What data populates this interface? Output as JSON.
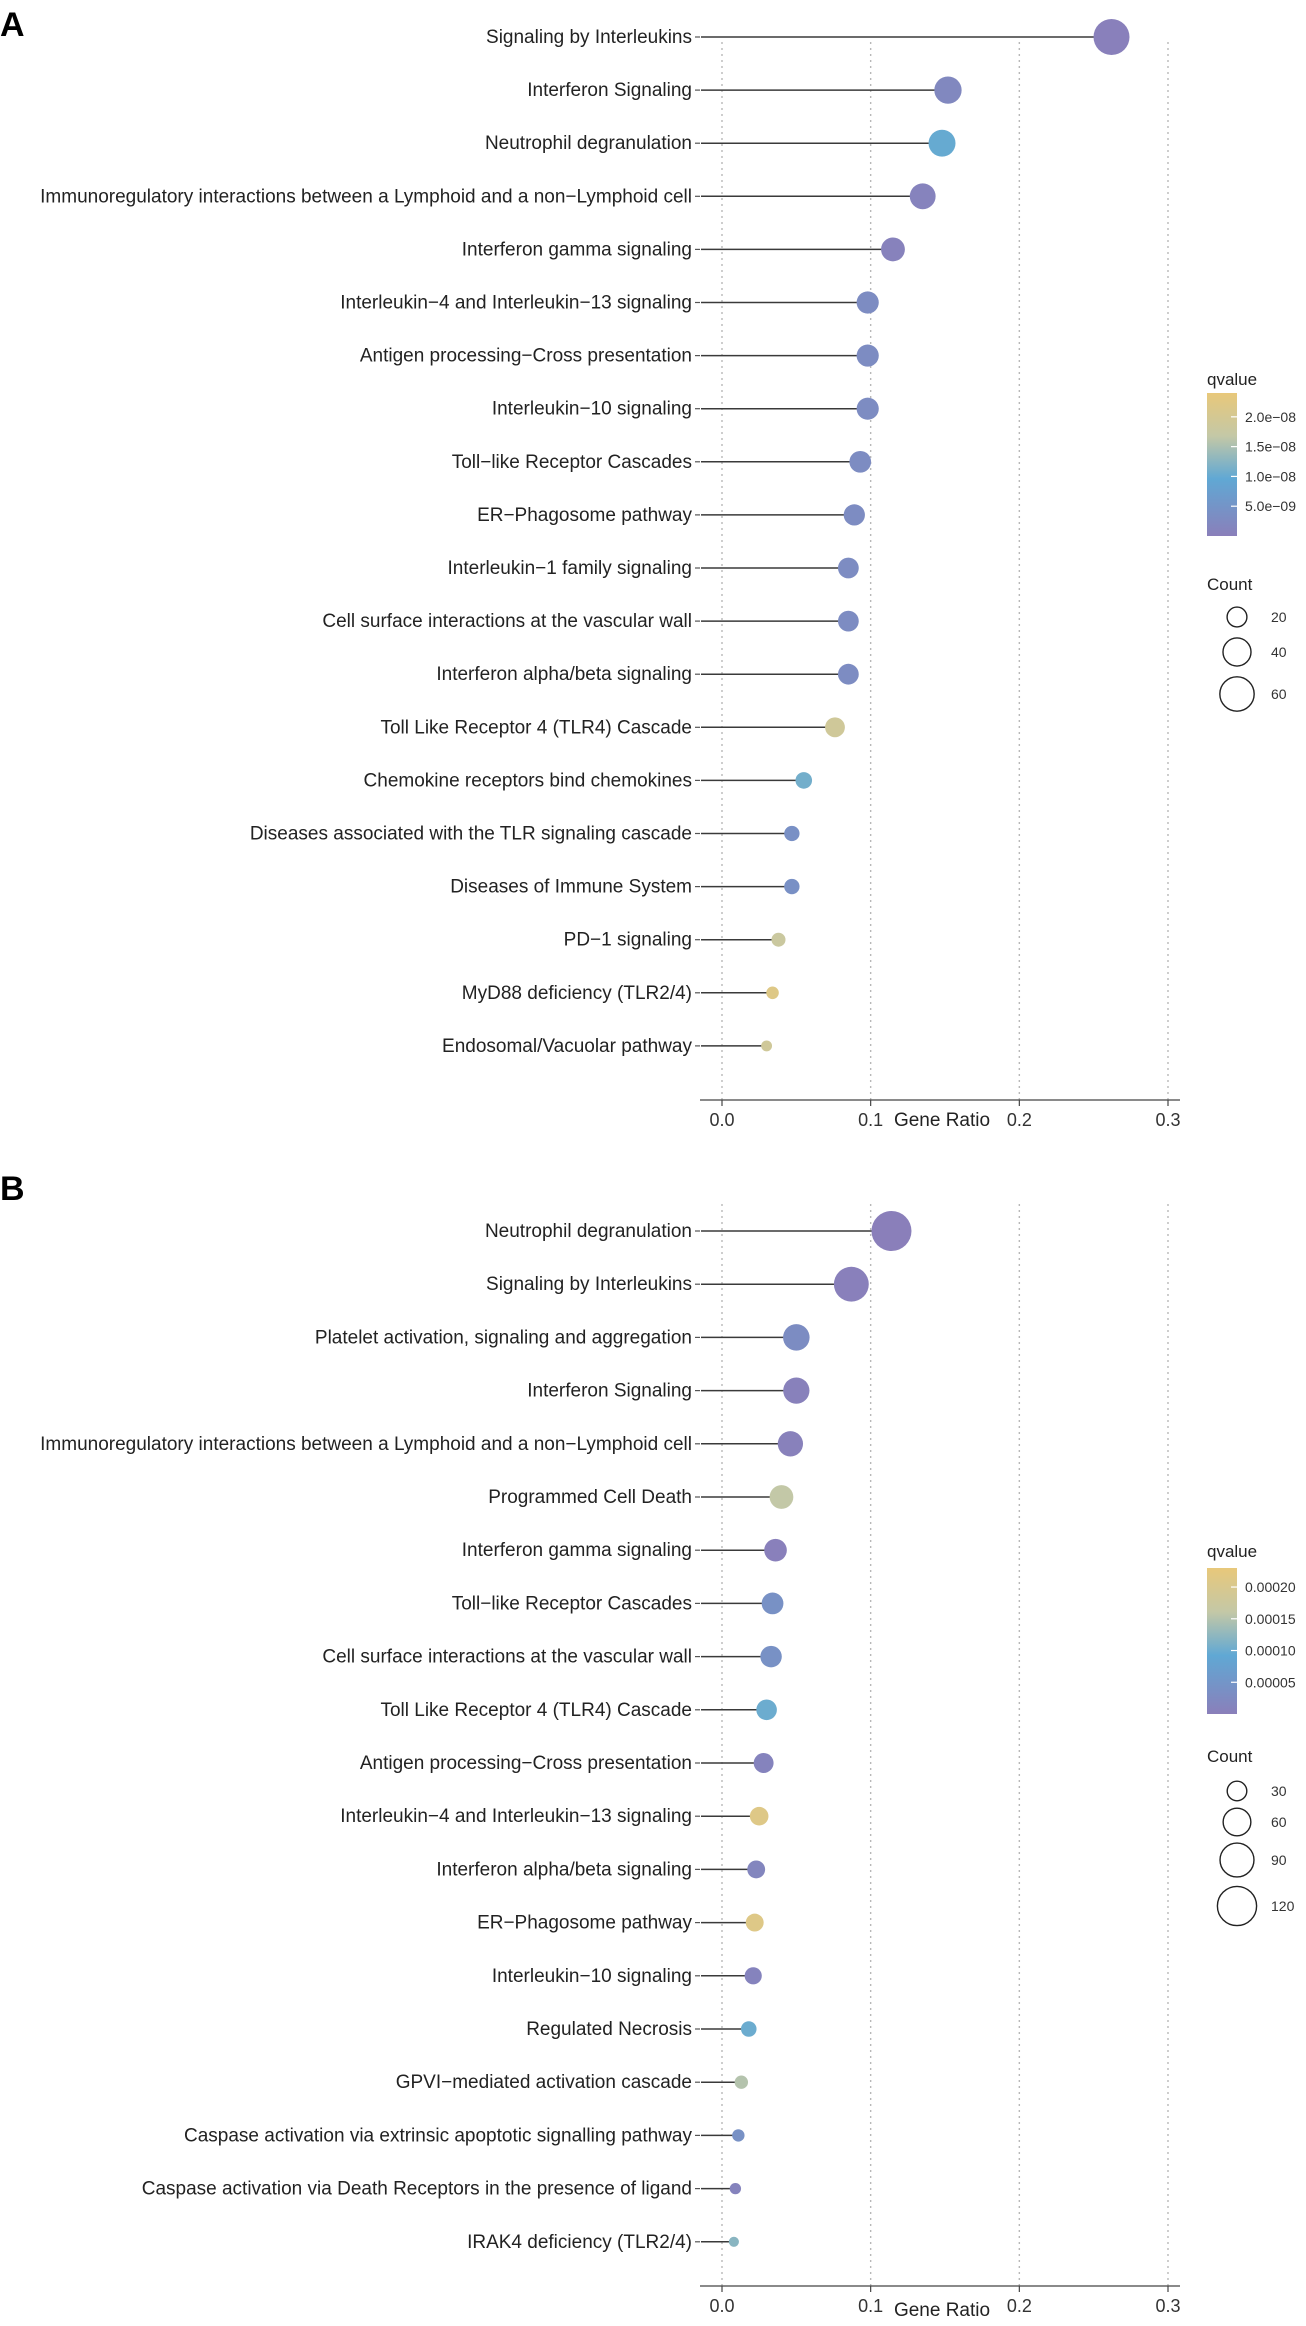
{
  "chart_data": [
    {
      "panel": "A",
      "type": "scatter",
      "style": "lollipop",
      "xlabel": "Gene Ratio",
      "xlim": [
        -0.015,
        0.315
      ],
      "xticks": [
        0.0,
        0.1,
        0.2,
        0.3
      ],
      "xtick_labels": [
        "0.0",
        "0.1",
        "0.2",
        "0.3"
      ],
      "grid": "vertical dotted at x ticks",
      "categories": [
        "Signaling by Interleukins",
        "Interferon Signaling",
        "Neutrophil degranulation",
        "Immunoregulatory interactions between a Lymphoid and a non−Lymphoid cell",
        "Interferon gamma signaling",
        "Interleukin−4 and Interleukin−13 signaling",
        "Antigen processing−Cross presentation",
        "Interleukin−10 signaling",
        "Toll−like Receptor Cascades",
        "ER−Phagosome pathway",
        "Interleukin−1 family signaling",
        "Cell surface interactions at the vascular wall",
        "Interferon alpha/beta signaling",
        "Toll Like Receptor 4 (TLR4) Cascade",
        "Chemokine receptors bind chemokines",
        "Diseases associated with the TLR signaling cascade",
        "Diseases of Immune System",
        "PD−1 signaling",
        "MyD88 deficiency (TLR2/4)",
        "Endosomal/Vacuolar pathway"
      ],
      "gene_ratio": [
        0.262,
        0.152,
        0.148,
        0.135,
        0.115,
        0.098,
        0.098,
        0.098,
        0.093,
        0.089,
        0.085,
        0.085,
        0.085,
        0.076,
        0.055,
        0.047,
        0.047,
        0.038,
        0.034,
        0.03
      ],
      "count": [
        66,
        38,
        37,
        34,
        29,
        25,
        25,
        25,
        24,
        23,
        22,
        22,
        22,
        20,
        14,
        12,
        12,
        10,
        8,
        6
      ],
      "qvalue": [
        2e-10,
        2e-09,
        1e-08,
        1e-09,
        8e-10,
        3e-09,
        3e-09,
        3e-09,
        3e-09,
        3e-09,
        3e-09,
        3e-09,
        3e-09,
        1.9e-08,
        1.1e-08,
        4e-09,
        4e-09,
        1.8e-08,
        2.2e-08,
        1.9e-08
      ],
      "legend": {
        "color_title": "qvalue",
        "color_range": [
          0.0,
          2.4e-08
        ],
        "color_ticks": [
          5e-09,
          1e-08,
          1.5e-08,
          2e-08
        ],
        "color_tick_labels": [
          "5.0e−09",
          "1.0e−08",
          "1.5e−08",
          "2.0e−08"
        ],
        "size_title": "Count",
        "size_values": [
          20,
          40,
          60
        ],
        "size_labels": [
          "20",
          "40",
          "60"
        ],
        "placement": "right"
      }
    },
    {
      "panel": "B",
      "type": "scatter",
      "style": "lollipop",
      "xlabel": "Gene Ratio",
      "xlim": [
        -0.015,
        0.315
      ],
      "xticks": [
        0.0,
        0.1,
        0.2,
        0.3
      ],
      "xtick_labels": [
        "0.0",
        "0.1",
        "0.2",
        "0.3"
      ],
      "grid": "vertical dotted at x ticks",
      "categories": [
        "Neutrophil degranulation",
        "Signaling by Interleukins",
        "Platelet activation, signaling and aggregation",
        "Interferon Signaling",
        "Immunoregulatory interactions between a Lymphoid and a non−Lymphoid cell",
        "Programmed Cell Death",
        "Interferon gamma signaling",
        "Toll−like Receptor Cascades",
        "Cell surface interactions at the vascular wall",
        "Toll Like Receptor 4 (TLR4) Cascade",
        "Antigen processing−Cross presentation",
        "Interleukin−4 and Interleukin−13 signaling",
        "Interferon alpha/beta signaling",
        "ER−Phagosome pathway",
        "Interleukin−10 signaling",
        "Regulated Necrosis",
        "GPVI−mediated activation cascade",
        "Caspase activation via extrinsic apoptotic signalling pathway",
        "Caspase activation via Death Receptors in the presence of ligand",
        "IRAK4 deficiency (TLR2/4)"
      ],
      "gene_ratio": [
        0.114,
        0.087,
        0.05,
        0.05,
        0.046,
        0.04,
        0.036,
        0.034,
        0.033,
        0.03,
        0.028,
        0.025,
        0.023,
        0.022,
        0.021,
        0.018,
        0.013,
        0.011,
        0.009,
        0.008
      ],
      "count": [
        125,
        95,
        55,
        54,
        50,
        44,
        40,
        37,
        36,
        33,
        31,
        27,
        25,
        25,
        23,
        19,
        14,
        12,
        10,
        8
      ],
      "qvalue": [
        1e-06,
        2e-06,
        3e-05,
        5e-06,
        5e-06,
        0.00016,
        3e-06,
        4e-05,
        4e-05,
        0.0001,
        1e-05,
        0.00021,
        1.5e-05,
        0.00021,
        1e-05,
        0.0001,
        0.00015,
        4e-05,
        1e-05,
        0.00012
      ],
      "legend": {
        "color_title": "qvalue",
        "color_range": [
          0.0,
          0.00023
        ],
        "color_ticks": [
          5e-05,
          0.0001,
          0.00015,
          0.0002
        ],
        "color_tick_labels": [
          "0.00005",
          "0.00010",
          "0.00015",
          "0.00020"
        ],
        "size_title": "Count",
        "size_values": [
          30,
          60,
          90,
          120
        ],
        "size_labels": [
          "30",
          "60",
          "90",
          "120"
        ],
        "placement": "right"
      }
    }
  ]
}
